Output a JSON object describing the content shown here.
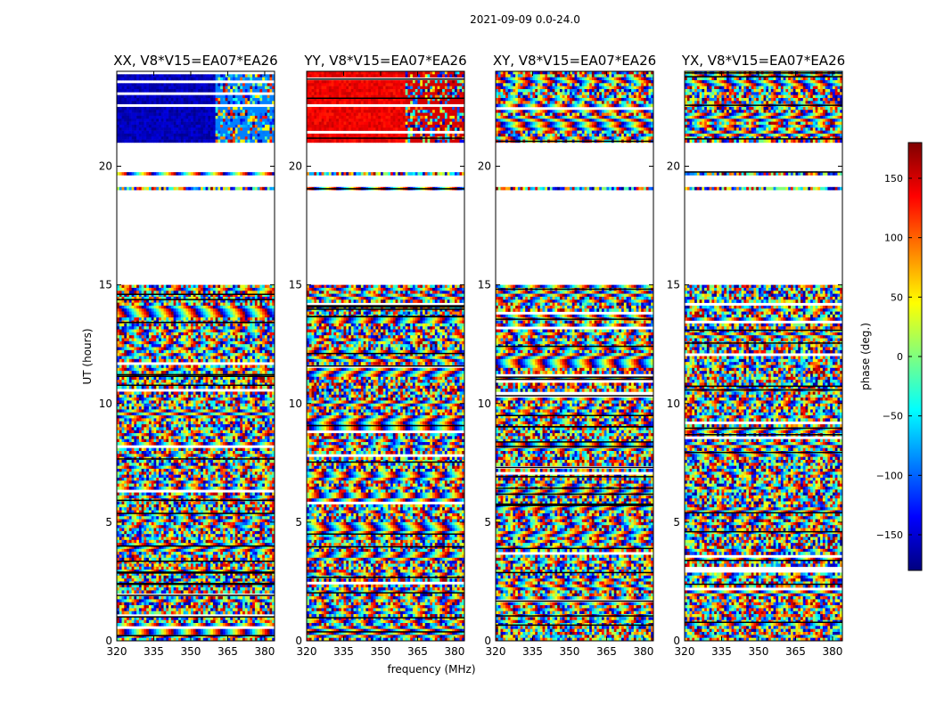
{
  "figure": {
    "suptitle": "2021-09-09 0.0-24.0",
    "xlabel": "frequency (MHz)",
    "ylabel": "UT (hours)",
    "colorbar_label": "phase (deg.)",
    "colormap": "jet"
  },
  "chart_data": {
    "type": "heatmap",
    "title": "2021-09-09 0.0-24.0",
    "xlabel": "frequency (MHz)",
    "ylabel": "UT (hours)",
    "xlim": [
      320,
      384
    ],
    "ylim": [
      0,
      24
    ],
    "x_ticks": [
      320,
      335,
      350,
      365,
      380
    ],
    "y_ticks": [
      0,
      5,
      10,
      15,
      20
    ],
    "colorbar": {
      "label": "phase (deg.)",
      "range": [
        -180,
        180
      ],
      "ticks": [
        150,
        100,
        50,
        0,
        -50,
        -100,
        -150
      ],
      "tick_labels": [
        "150",
        "100",
        "50",
        "0",
        "−50",
        "−100",
        "−150"
      ]
    },
    "flagged_time_ranges_hours": [
      [
        19.1,
        19.6
      ],
      [
        15.0,
        19.0
      ],
      [
        19.8,
        21.0
      ]
    ],
    "panels": [
      {
        "title": "XX, V8*V15=EA07*EA26",
        "baseline": "V8*V15=EA07*EA26",
        "polarization": "XX",
        "late_phase_deg": -160,
        "late_phase_deg_high_freq": -90
      },
      {
        "title": "YY, V8*V15=EA07*EA26",
        "baseline": "V8*V15=EA07*EA26",
        "polarization": "YY",
        "late_phase_deg": 140,
        "late_phase_deg_high_freq": 150
      },
      {
        "title": "XY, V8*V15=EA07*EA26",
        "baseline": "V8*V15=EA07*EA26",
        "polarization": "XY",
        "late_phase_deg": null,
        "late_phase_deg_high_freq": null
      },
      {
        "title": "YX, V8*V15=EA07*EA26",
        "baseline": "V8*V15=EA07*EA26",
        "polarization": "YX",
        "late_phase_deg": null,
        "late_phase_deg_high_freq": null
      }
    ]
  }
}
